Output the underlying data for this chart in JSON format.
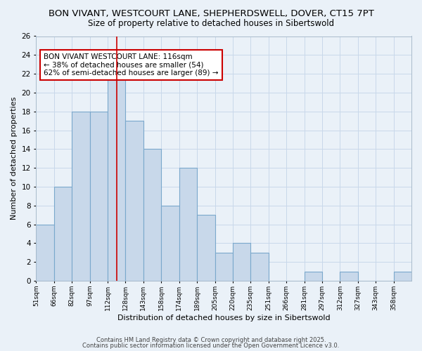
{
  "title_line1": "BON VIVANT, WESTCOURT LANE, SHEPHERDSWELL, DOVER, CT15 7PT",
  "title_line2": "Size of property relative to detached houses in Sibertswold",
  "xlabel": "Distribution of detached houses by size in Sibertswold",
  "ylabel": "Number of detached properties",
  "bin_labels": [
    "51sqm",
    "66sqm",
    "82sqm",
    "97sqm",
    "112sqm",
    "128sqm",
    "143sqm",
    "158sqm",
    "174sqm",
    "189sqm",
    "205sqm",
    "220sqm",
    "235sqm",
    "251sqm",
    "266sqm",
    "281sqm",
    "297sqm",
    "312sqm",
    "327sqm",
    "343sqm",
    "358sqm"
  ],
  "counts": [
    6,
    10,
    18,
    18,
    22,
    17,
    14,
    8,
    12,
    7,
    3,
    4,
    3,
    0,
    0,
    1,
    0,
    1,
    0,
    0,
    1
  ],
  "bar_facecolor": "#c8d8ea",
  "bar_edgecolor": "#7aa8cc",
  "bar_linewidth": 0.8,
  "vline_x": 4.5,
  "vline_color": "#cc0000",
  "vline_linewidth": 1.2,
  "annotation_text": "BON VIVANT WESTCOURT LANE: 116sqm\n← 38% of detached houses are smaller (54)\n62% of semi-detached houses are larger (89) →",
  "annotation_box_edgecolor": "#cc0000",
  "annotation_box_facecolor": "white",
  "grid_color": "#c8d8ea",
  "background_color": "#eaf1f8",
  "plot_bg_color": "#eaf1f8",
  "ylim": [
    0,
    26
  ],
  "yticks": [
    0,
    2,
    4,
    6,
    8,
    10,
    12,
    14,
    16,
    18,
    20,
    22,
    24,
    26
  ],
  "footer_line1": "Contains HM Land Registry data © Crown copyright and database right 2025.",
  "footer_line2": "Contains public sector information licensed under the Open Government Licence v3.0."
}
